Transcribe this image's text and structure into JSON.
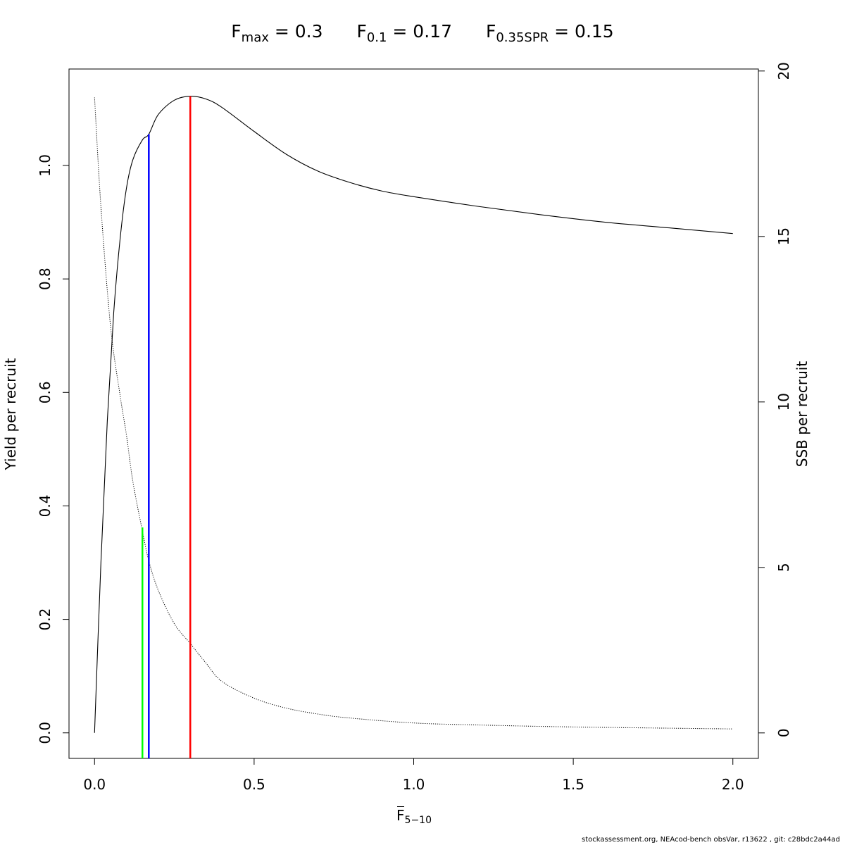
{
  "title": {
    "fmax_symbol": "F",
    "fmax_sub": "max",
    "fmax_value": " = 0.3",
    "f01_symbol": "F",
    "f01_sub": "0.1",
    "f01_value": " = 0.17",
    "fspr_symbol": "F",
    "fspr_sub": "0.35SPR",
    "fspr_value": " = 0.15"
  },
  "footer": {
    "credit": "stockassessment.org, NEAcod-bench  obsVar, r13622 , git: c28bdc2a44ad"
  },
  "chart_data": {
    "type": "line",
    "xlabel_symbol": "F",
    "xlabel_sub": "5−10",
    "ylabel": "Yield per recruit",
    "y2label": "SSB per recruit",
    "xlim": [
      -0.08,
      2.08
    ],
    "ylim": [
      -0.045,
      1.17
    ],
    "y2lim": [
      -0.77,
      20.06
    ],
    "x_ticks": [
      0,
      0.5,
      1,
      1.5,
      2
    ],
    "x_tick_labels": [
      "0.0",
      "0.5",
      "1.0",
      "1.5",
      "2.0"
    ],
    "y_ticks": [
      0,
      0.2,
      0.4,
      0.6,
      0.8,
      1.0
    ],
    "y_tick_labels": [
      "0.0",
      "0.2",
      "0.4",
      "0.6",
      "0.8",
      "1.0"
    ],
    "y2_ticks": [
      0,
      5,
      10,
      15,
      20
    ],
    "y2_tick_labels": [
      "0",
      "5",
      "10",
      "15",
      "20"
    ],
    "grid": false,
    "series": [
      {
        "axis": "left",
        "style": "solid",
        "color": "#000000",
        "x": [
          0,
          0.02,
          0.04,
          0.06,
          0.08,
          0.1,
          0.12,
          0.15,
          0.17,
          0.2,
          0.25,
          0.3,
          0.35,
          0.4,
          0.5,
          0.6,
          0.7,
          0.8,
          0.9,
          1.0,
          1.2,
          1.4,
          1.6,
          1.8,
          2.0
        ],
        "y": [
          0,
          0.3,
          0.55,
          0.74,
          0.87,
          0.96,
          1.01,
          1.045,
          1.055,
          1.09,
          1.115,
          1.122,
          1.117,
          1.102,
          1.06,
          1.02,
          0.99,
          0.97,
          0.955,
          0.945,
          0.928,
          0.913,
          0.9,
          0.89,
          0.88
        ]
      },
      {
        "axis": "right",
        "style": "dotted",
        "color": "#000000",
        "x": [
          0,
          0.02,
          0.05,
          0.08,
          0.1,
          0.12,
          0.15,
          0.17,
          0.2,
          0.25,
          0.3,
          0.35,
          0.4,
          0.5,
          0.6,
          0.7,
          0.8,
          1.0,
          1.2,
          1.5,
          2.0
        ],
        "y": [
          19.2,
          15.9,
          12.3,
          10.2,
          9.0,
          7.6,
          6.1,
          5.2,
          4.3,
          3.3,
          2.7,
          2.1,
          1.55,
          1.05,
          0.75,
          0.57,
          0.45,
          0.3,
          0.24,
          0.18,
          0.12
        ]
      }
    ],
    "reference_lines": [
      {
        "name": "F0.35SPR",
        "x": 0.15,
        "y_top": 0.362,
        "color": "#00ff00"
      },
      {
        "name": "F0.1",
        "x": 0.17,
        "y_top": 1.055,
        "color": "#0000ff"
      },
      {
        "name": "Fmax",
        "x": 0.3,
        "y_top": 1.122,
        "color": "#ff0000"
      }
    ]
  }
}
